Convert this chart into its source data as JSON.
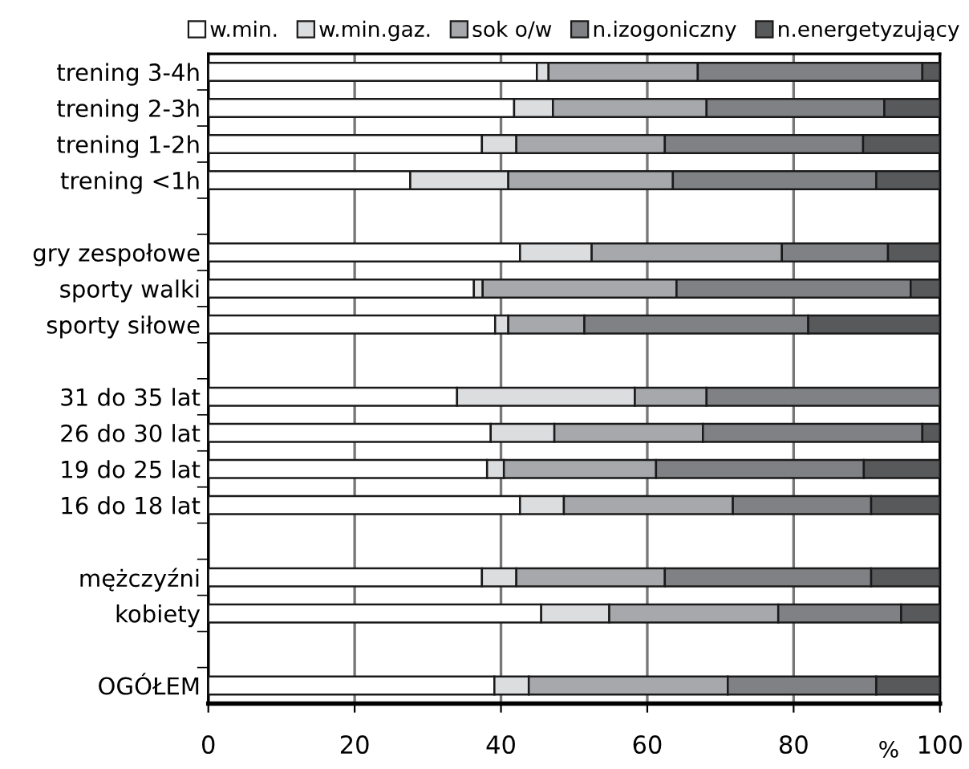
{
  "chart_data": {
    "type": "bar",
    "orientation": "horizontal",
    "stacked": true,
    "xlabel": "%",
    "categories": [
      "trening 3-4h",
      "trening 2-3h",
      "trening 1-2h",
      "trening <1h",
      null,
      "gry zespołowe",
      "sporty walki",
      "sporty siłowe",
      null,
      "31 do 35 lat",
      "26 do 30 lat",
      "19 do 25 lat",
      "16 do 18 lat",
      null,
      "mężczyźni",
      "kobiety",
      null,
      "OGÓŁEM"
    ],
    "series": [
      {
        "name": "w.min.",
        "color": "#ffffff",
        "values": [
          44.9,
          41.8,
          37.4,
          27.6,
          null,
          42.6,
          36.3,
          39.2,
          null,
          34.0,
          38.6,
          38.1,
          42.6,
          null,
          37.4,
          45.5,
          null,
          39.1
        ]
      },
      {
        "name": "w.min.gaz.",
        "color": "#dcdddf",
        "values": [
          1.6,
          5.3,
          4.7,
          13.4,
          null,
          9.8,
          1.2,
          1.8,
          null,
          24.3,
          8.7,
          2.3,
          6.0,
          null,
          4.7,
          9.3,
          null,
          4.7
        ]
      },
      {
        "name": "sok o/w",
        "color": "#a7a8ab",
        "values": [
          20.4,
          21.0,
          20.3,
          22.5,
          null,
          26.0,
          26.5,
          10.4,
          null,
          9.8,
          20.3,
          20.8,
          23.1,
          null,
          20.3,
          23.1,
          null,
          27.2
        ]
      },
      {
        "name": "n.izogoniczny",
        "color": "#808184",
        "values": [
          30.7,
          24.3,
          27.1,
          27.8,
          null,
          14.5,
          32.0,
          30.6,
          null,
          31.9,
          30.0,
          28.4,
          18.9,
          null,
          28.2,
          16.8,
          null,
          20.3
        ]
      },
      {
        "name": "n.energetyzujący",
        "color": "#58595b",
        "values": [
          2.4,
          7.6,
          10.5,
          8.7,
          null,
          7.1,
          4.0,
          18.0,
          null,
          null,
          2.4,
          10.4,
          9.4,
          null,
          9.4,
          5.3,
          null,
          8.7
        ]
      }
    ],
    "xlim": [
      0,
      100
    ],
    "xticks": [
      0,
      20,
      40,
      60,
      80,
      100
    ],
    "grid": "x",
    "legend": "top"
  }
}
